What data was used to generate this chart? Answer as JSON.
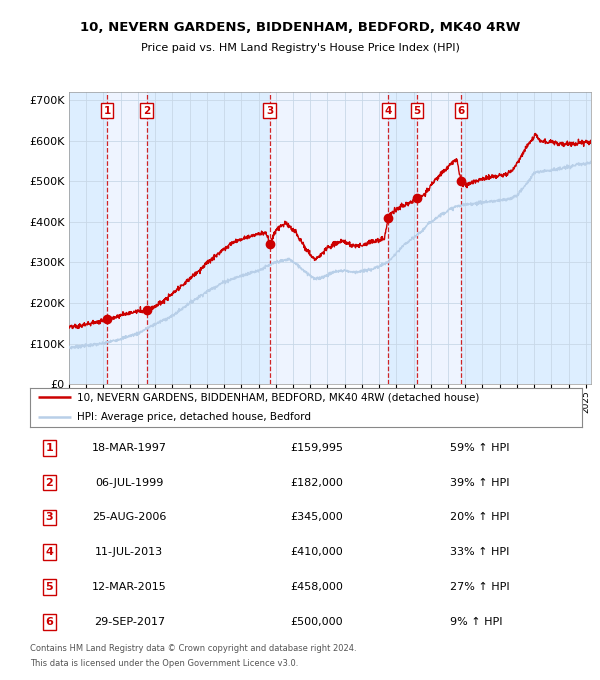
{
  "title": "10, NEVERN GARDENS, BIDDENHAM, BEDFORD, MK40 4RW",
  "subtitle": "Price paid vs. HM Land Registry's House Price Index (HPI)",
  "purchase_info": [
    {
      "num": "1",
      "date": "18-MAR-1997",
      "price": "£159,995",
      "hpi": "59% ↑ HPI"
    },
    {
      "num": "2",
      "date": "06-JUL-1999",
      "price": "£182,000",
      "hpi": "39% ↑ HPI"
    },
    {
      "num": "3",
      "date": "25-AUG-2006",
      "price": "£345,000",
      "hpi": "20% ↑ HPI"
    },
    {
      "num": "4",
      "date": "11-JUL-2013",
      "price": "£410,000",
      "hpi": "33% ↑ HPI"
    },
    {
      "num": "5",
      "date": "12-MAR-2015",
      "price": "£458,000",
      "hpi": "27% ↑ HPI"
    },
    {
      "num": "6",
      "date": "29-SEP-2017",
      "price": "£500,000",
      "hpi": "9% ↑ HPI"
    }
  ],
  "legend_line1": "10, NEVERN GARDENS, BIDDENHAM, BEDFORD, MK40 4RW (detached house)",
  "legend_line2": "HPI: Average price, detached house, Bedford",
  "footer1": "Contains HM Land Registry data © Crown copyright and database right 2024.",
  "footer2": "This data is licensed under the Open Government Licence v3.0.",
  "hpi_color": "#b8cfe8",
  "price_color": "#cc0000",
  "marker_color": "#cc0000",
  "dashed_color": "#cc0000",
  "band_color_a": "#ddeeff",
  "band_color_b": "#eef4ff",
  "ylim": [
    0,
    720000
  ],
  "yticks": [
    0,
    100000,
    200000,
    300000,
    400000,
    500000,
    600000,
    700000
  ],
  "ytick_labels": [
    "£0",
    "£100K",
    "£200K",
    "£300K",
    "£400K",
    "£500K",
    "£600K",
    "£700K"
  ],
  "xmin": 1995.0,
  "xmax": 2025.3,
  "purchase_dates_num": [
    1997.21,
    1999.51,
    2006.65,
    2013.53,
    2015.19,
    2017.75
  ],
  "purchase_prices": [
    159995,
    182000,
    345000,
    410000,
    458000,
    500000
  ]
}
